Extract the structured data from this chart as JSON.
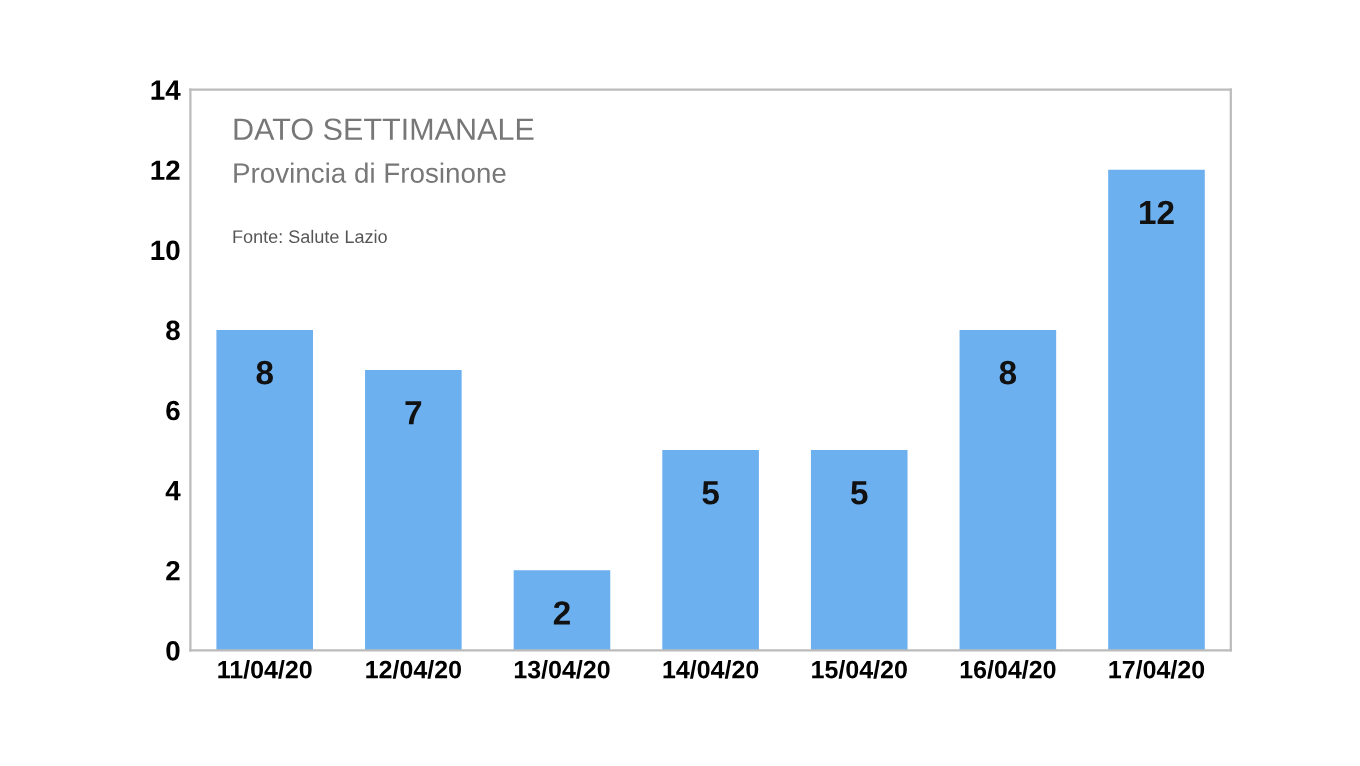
{
  "chart_data": {
    "type": "bar",
    "title": "DATO SETTIMANALE",
    "subtitle": "Provincia di Frosinone",
    "annotations": [
      "Fonte: Salute Lazio"
    ],
    "categories": [
      "11/04/20",
      "12/04/20",
      "13/04/20",
      "14/04/20",
      "15/04/20",
      "16/04/20",
      "17/04/20"
    ],
    "values": [
      8,
      7,
      2,
      5,
      5,
      8,
      12
    ],
    "color": "#6cb0f0",
    "ylim": [
      0,
      14
    ],
    "yticks": [
      0,
      2,
      4,
      6,
      8,
      10,
      12,
      14
    ],
    "grid": false,
    "data_labels": true
  }
}
